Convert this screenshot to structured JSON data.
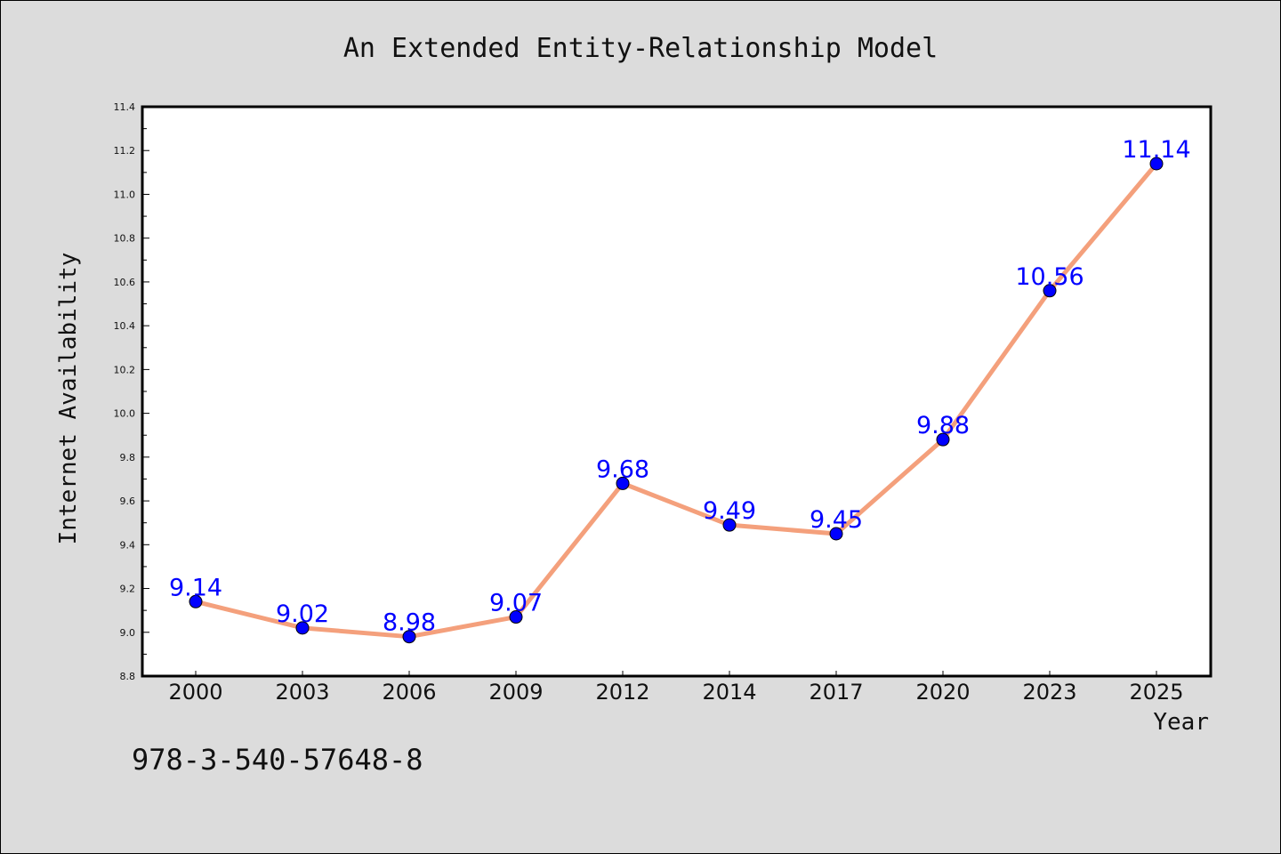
{
  "chart_data": {
    "type": "line",
    "title": "An Extended Entity-Relationship Model",
    "xlabel": "Year",
    "ylabel": "Internet Availability",
    "categories": [
      "2000",
      "2003",
      "2006",
      "2009",
      "2012",
      "2014",
      "2017",
      "2020",
      "2023",
      "2025"
    ],
    "values": [
      9.14,
      9.02,
      8.98,
      9.07,
      9.68,
      9.49,
      9.45,
      9.88,
      10.56,
      11.14
    ],
    "data_labels": [
      "9.14",
      "9.02",
      "8.98",
      "9.07",
      "9.68",
      "9.49",
      "9.45",
      "9.88",
      "10.56",
      "11.14"
    ],
    "ylim": [
      8.8,
      11.4
    ],
    "yticks": [
      "8.8",
      "9.0",
      "9.2",
      "9.4",
      "9.6",
      "9.8",
      "10.0",
      "10.2",
      "10.4",
      "10.6",
      "10.8",
      "11.0",
      "11.2",
      "11.4"
    ],
    "grid": false,
    "legend": "none",
    "line_color": "#f4a07c",
    "marker_color": "#0000ff",
    "label_color": "#0000ff",
    "background_color": "#dcdcdc",
    "plot_background_color": "#ffffff"
  },
  "footer": {
    "text": "978-3-540-57648-8"
  }
}
